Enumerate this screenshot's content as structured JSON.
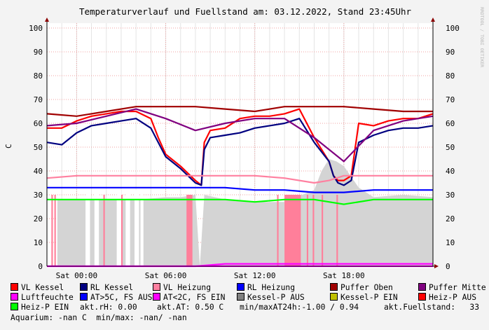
{
  "title": "Temperaturverlauf und Fuellstand am: 03.12.2022, Stand 23:45Uhr",
  "watermark": "RRDTOOL / TOBI OETIKER",
  "chart_data": {
    "type": "line",
    "ylabel": "C",
    "ylim": [
      0,
      100
    ],
    "yticks": [
      "0",
      "10",
      "20",
      "30",
      "40",
      "50",
      "60",
      "70",
      "80",
      "90",
      "100"
    ],
    "xticks": [
      "Sat 00:00",
      "Sat 06:00",
      "Sat 12:00",
      "Sat 18:00"
    ],
    "xrange_hours": [
      -2,
      24
    ],
    "grid": true,
    "series": [
      {
        "name": "VL Kessel",
        "color": "#ff0000",
        "x": [
          -2,
          -1,
          0,
          1,
          2,
          3,
          4,
          5,
          5.5,
          6,
          7,
          8,
          8.4,
          8.6,
          9,
          10,
          11,
          12,
          13,
          14,
          15,
          16,
          17,
          17.3,
          17.6,
          18,
          18.5,
          19,
          20,
          21,
          22,
          23,
          24
        ],
        "y": [
          58,
          58,
          61,
          63,
          64,
          65,
          65,
          62,
          54,
          47,
          42,
          36,
          34,
          52,
          57,
          58,
          62,
          63,
          63,
          64,
          66,
          54,
          44,
          38,
          36,
          36,
          38,
          60,
          59,
          61,
          62,
          62,
          64
        ]
      },
      {
        "name": "RL Kessel",
        "color": "#000080",
        "x": [
          -2,
          -1,
          0,
          1,
          2,
          3,
          4,
          5,
          5.5,
          6,
          7,
          8,
          8.4,
          8.6,
          9,
          10,
          11,
          12,
          13,
          14,
          15,
          16,
          17,
          17.3,
          17.6,
          18,
          18.5,
          19,
          20,
          21,
          22,
          23,
          24
        ],
        "y": [
          52,
          51,
          56,
          59,
          60,
          61,
          62,
          58,
          52,
          46,
          41,
          35,
          34,
          49,
          54,
          55,
          56,
          58,
          59,
          60,
          62,
          52,
          44,
          38,
          35,
          34,
          36,
          52,
          55,
          57,
          58,
          58,
          59
        ]
      },
      {
        "name": "VL Heizung",
        "color": "#ff80a0",
        "x": [
          -2,
          0,
          2,
          4,
          6,
          8,
          10,
          12,
          14,
          16,
          17,
          18,
          20,
          22,
          24
        ],
        "y": [
          37,
          38,
          38,
          38,
          38,
          38,
          38,
          38,
          37,
          35,
          36,
          38,
          38,
          38,
          38
        ]
      },
      {
        "name": "RL Heizung",
        "color": "#0000ff",
        "x": [
          -2,
          0,
          2,
          4,
          6,
          8,
          10,
          12,
          14,
          16,
          18,
          20,
          22,
          24
        ],
        "y": [
          33,
          33,
          33,
          33,
          33,
          33,
          33,
          32,
          32,
          31,
          31,
          32,
          32,
          32
        ]
      },
      {
        "name": "Puffer Oben",
        "color": "#a00000",
        "x": [
          -2,
          0,
          2,
          4,
          6,
          8,
          10,
          12,
          14,
          16,
          18,
          20,
          22,
          24
        ],
        "y": [
          64,
          63,
          65,
          67,
          67,
          67,
          66,
          65,
          67,
          67,
          67,
          66,
          65,
          65
        ]
      },
      {
        "name": "Puffer Mitte",
        "color": "#800080",
        "x": [
          -2,
          0,
          2,
          4,
          6,
          8,
          10,
          12,
          14,
          16,
          18,
          20,
          22,
          24
        ],
        "y": [
          59,
          60,
          63,
          66,
          62,
          57,
          60,
          62,
          62,
          54,
          44,
          57,
          61,
          63
        ]
      },
      {
        "name": "Luftfeuchte",
        "color": "#ff00ff",
        "x": [
          -2,
          0,
          2,
          4,
          6,
          8,
          10,
          12,
          14,
          16,
          18,
          20,
          22,
          24
        ],
        "y": [
          0,
          0,
          0,
          0,
          0,
          0,
          0,
          0,
          0,
          0,
          0,
          0,
          0,
          0
        ]
      },
      {
        "name": "AT>5C, FS AUS",
        "color": "#0000ff",
        "x": [],
        "y": []
      },
      {
        "name": "AT<2C, FS EIN",
        "color": "#ff00ff",
        "x": [
          -2,
          0,
          2,
          4,
          6,
          8,
          10,
          12,
          14,
          16,
          18,
          20,
          22,
          24
        ],
        "y": [
          0,
          0,
          0,
          0,
          0,
          0,
          1,
          1,
          1,
          1,
          1,
          1,
          1,
          1
        ]
      },
      {
        "name": "Kessel-P AUS",
        "color": "#808080",
        "x": [],
        "y": []
      },
      {
        "name": "Kessel-P EIN",
        "color": "#c0c000",
        "x": [],
        "y": []
      },
      {
        "name": "Heiz-P AUS",
        "color": "#ff0000",
        "x": [],
        "y": []
      },
      {
        "name": "Heiz-P EIN",
        "color": "#00ff00",
        "x": [
          -2,
          0,
          2,
          4,
          6,
          8,
          10,
          12,
          14,
          16,
          18,
          20,
          22,
          24
        ],
        "y": [
          28,
          28,
          28,
          28,
          28,
          28,
          28,
          27,
          28,
          28,
          26,
          28,
          28,
          28
        ]
      }
    ]
  },
  "stats": {
    "rh": "akt.rH: 0.00",
    "at": "akt.AT: 0.50 C",
    "minmax": "min/maxAT24h:-1.00 / 0.94",
    "fuell_label": "akt.Fuellstand:",
    "fuell_value": "33",
    "aquarium": "Aquarium: -nan C  min/max: -nan/ -nan"
  }
}
